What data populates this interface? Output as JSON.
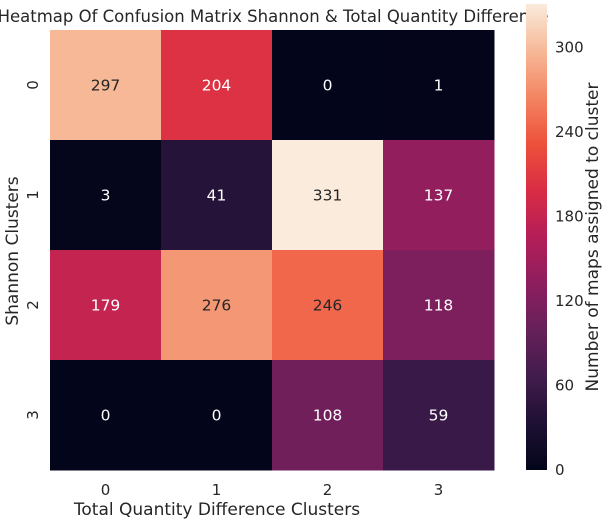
{
  "chart_data": {
    "type": "heatmap",
    "title": "Heatmap Of Confusion Matrix Shannon & Total Quantity Difference",
    "xlabel": "Total Quantity Difference Clusters",
    "ylabel": "Shannon Clusters",
    "x_categories": [
      "0",
      "1",
      "2",
      "3"
    ],
    "y_categories": [
      "0",
      "1",
      "2",
      "3"
    ],
    "values": [
      [
        297,
        204,
        0,
        1
      ],
      [
        3,
        41,
        331,
        137
      ],
      [
        179,
        276,
        246,
        118
      ],
      [
        0,
        0,
        108,
        59
      ]
    ],
    "colorbar": {
      "label": "Number of maps assigned to cluster",
      "range": [
        0,
        331
      ],
      "ticks": [
        "0",
        "60",
        "120",
        "180",
        "240",
        "300"
      ],
      "colormap": "rocket"
    }
  }
}
